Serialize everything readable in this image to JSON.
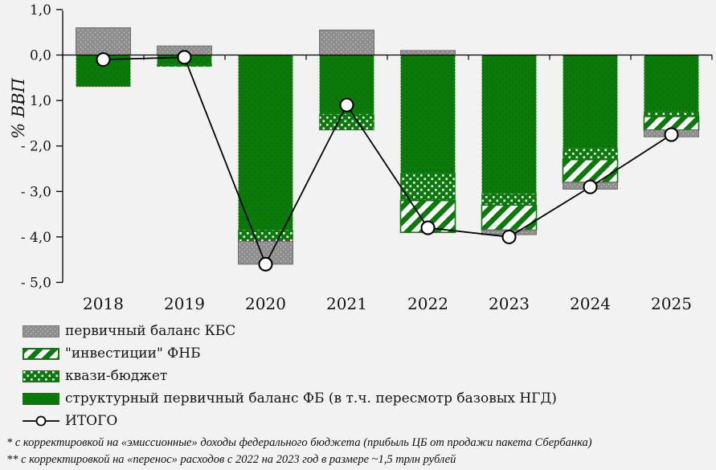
{
  "page": {
    "background": "#f2f2f2"
  },
  "colors": {
    "green": "#0a7a0a",
    "green_dark_dot": "#075c07",
    "gray": "#8e8e8e",
    "gray_light_dot": "#c9c9c9",
    "line": "#000000",
    "marker_fill": "#ffffff",
    "axis": "#000000",
    "text": "#141414"
  },
  "chart_data": {
    "type": "bar",
    "subtype": "stacked-bars-with-total-line",
    "title": "",
    "ylabel": "% ВВП",
    "xlabel": "",
    "ylim": [
      -5.0,
      1.0
    ],
    "grid": false,
    "legend_position": "bottom-left",
    "yticks": [
      {
        "value": 1.0,
        "label": "1,0"
      },
      {
        "value": 0.0,
        "label": "0,0"
      },
      {
        "value": -1.0,
        "label": "- 1,0"
      },
      {
        "value": -2.0,
        "label": "- 2,0"
      },
      {
        "value": -3.0,
        "label": "- 3,0"
      },
      {
        "value": -4.0,
        "label": "- 4,0"
      },
      {
        "value": -5.0,
        "label": "- 5,0"
      }
    ],
    "categories": [
      "2018",
      "2019",
      "2020",
      "2021",
      "2022",
      "2023",
      "2024",
      "2025"
    ],
    "stack_order": [
      "struct",
      "quasi",
      "fnb",
      "kbs"
    ],
    "series": [
      {
        "key": "kbs",
        "name": "первичный баланс КБС",
        "style": "gray-dotted",
        "values": [
          0.6,
          0.2,
          -0.5,
          0.55,
          0.1,
          -0.1,
          -0.15,
          -0.15
        ]
      },
      {
        "key": "fnb",
        "name": "\"инвестиции\" ФНБ",
        "style": "green-diagonal-hatch",
        "values": [
          0,
          0,
          0,
          0,
          -0.7,
          -0.55,
          -0.5,
          -0.3
        ]
      },
      {
        "key": "quasi",
        "name": "квази-бюджет",
        "style": "green-white-dots",
        "values": [
          0,
          -0.05,
          -0.25,
          -0.35,
          -0.6,
          -0.25,
          -0.25,
          -0.1
        ]
      },
      {
        "key": "struct",
        "name": "структурный первичный баланс ФБ (в т.ч. пересмотр базовых НГД)",
        "style": "solid-green",
        "values": [
          -0.7,
          -0.2,
          -3.85,
          -1.3,
          -2.6,
          -3.05,
          -2.05,
          -1.25
        ]
      },
      {
        "key": "itogo",
        "name": "ИТОГО",
        "type": "line",
        "style": "black-line-open-circle-markers",
        "values": [
          -0.1,
          -0.05,
          -4.6,
          -1.1,
          -3.8,
          -4.0,
          -2.9,
          -1.75
        ]
      }
    ]
  },
  "footnotes": {
    "line1": "* с корректировкой на «эмиссионные» доходы федерального бюджета (прибыль ЦБ от продажи пакета Сбербанка)",
    "line2": "** с корректировкой на «перенос» расходов с 2022 на 2023 год в размере ~1,5 трлн рублей"
  }
}
